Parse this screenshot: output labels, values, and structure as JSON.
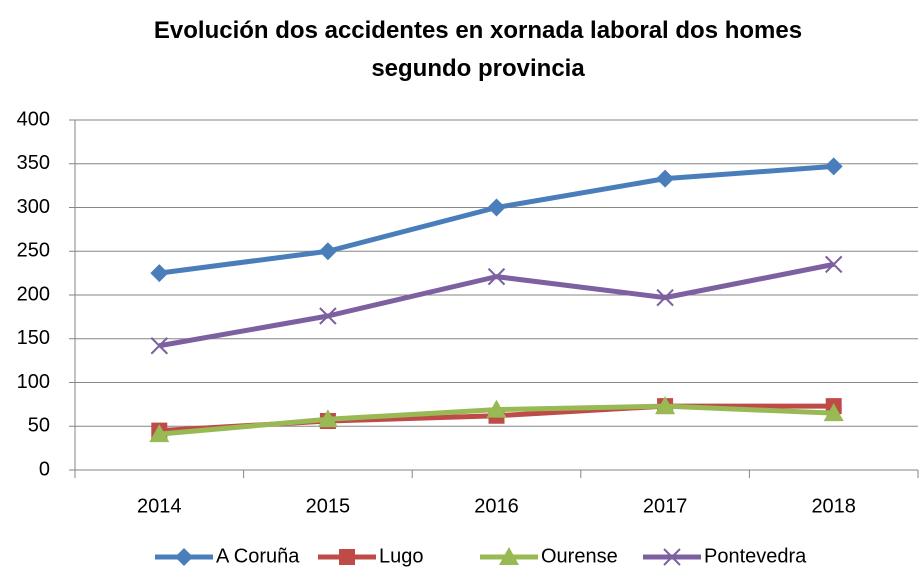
{
  "chart_data": {
    "type": "line",
    "title": "Evolución dos accidentes en xornada laboral dos homes segundo provincia",
    "categories": [
      "2014",
      "2015",
      "2016",
      "2017",
      "2018"
    ],
    "series": [
      {
        "name": "A Coruña",
        "color": "#4a7ebb",
        "marker": "diamond",
        "values": [
          225,
          250,
          300,
          333,
          347
        ]
      },
      {
        "name": "Lugo",
        "color": "#be4b48",
        "marker": "square",
        "values": [
          45,
          56,
          62,
          73,
          73
        ]
      },
      {
        "name": "Ourense",
        "color": "#98b954",
        "marker": "triangle",
        "values": [
          41,
          58,
          69,
          73,
          65
        ]
      },
      {
        "name": "Pontevedra",
        "color": "#7d60a0",
        "marker": "x",
        "values": [
          142,
          176,
          221,
          197,
          235
        ]
      }
    ],
    "ylim": [
      0,
      400
    ],
    "yticks": [
      0,
      50,
      100,
      150,
      200,
      250,
      300,
      350,
      400
    ],
    "grid": true,
    "legend": "bottom"
  }
}
